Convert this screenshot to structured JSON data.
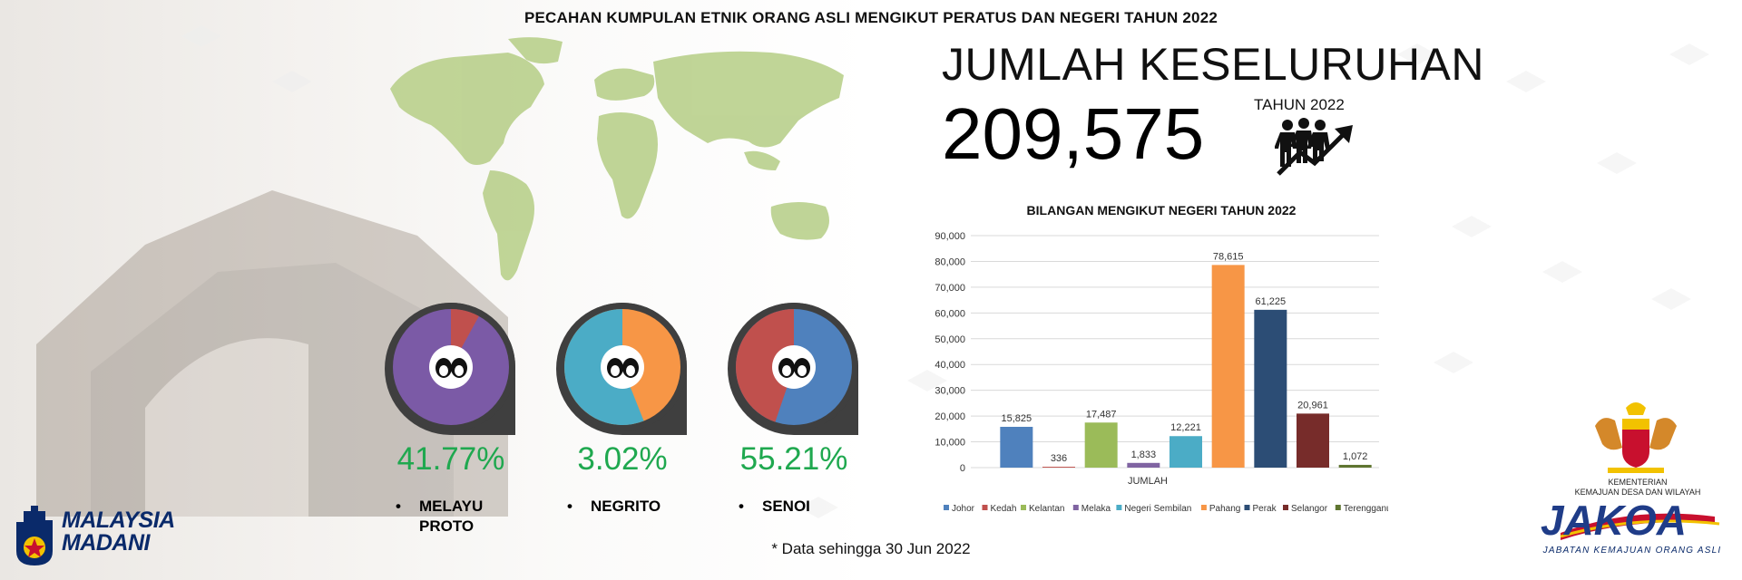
{
  "page_title": "PECAHAN KUMPULAN ETNIK ORANG ASLI MENGIKUT PERATUS DAN NEGERI TAHUN 2022",
  "total": {
    "label": "JUMLAH KESELURUHAN",
    "value": "209,575",
    "year_label": "TAHUN 2022"
  },
  "ethnic_groups": [
    {
      "pct": "41.77%",
      "fraction": 0.4177,
      "label": "MELAYU PROTO",
      "color_major": "#7b5aa6",
      "color_minor": "#c0504d"
    },
    {
      "pct": "3.02%",
      "fraction": 0.0302,
      "label": "NEGRITO",
      "color_major": "#4bacc6",
      "color_minor": "#f79646"
    },
    {
      "pct": "55.21%",
      "fraction": 0.5521,
      "label": "SENOI",
      "color_major": "#4f81bd",
      "color_minor": "#c0504d"
    }
  ],
  "bullet": "•",
  "chart_title": "BILANGAN MENGIKUT NEGERI TAHUN 2022",
  "chart_data": {
    "type": "bar",
    "title": "BILANGAN MENGIKUT NEGERI TAHUN 2022",
    "xlabel": "JUMLAH",
    "ylabel": "",
    "ylim": [
      0,
      90000
    ],
    "yticks": [
      "0",
      "10,000",
      "20,000",
      "30,000",
      "40,000",
      "50,000",
      "60,000",
      "70,000",
      "80,000",
      "90,000"
    ],
    "grid": true,
    "legend_position": "bottom",
    "series": [
      {
        "name": "Johor",
        "value": 15825,
        "label": "15,825",
        "color": "#4f81bd"
      },
      {
        "name": "Kedah",
        "value": 336,
        "label": "336",
        "color": "#c0504d"
      },
      {
        "name": "Kelantan",
        "value": 17487,
        "label": "17,487",
        "color": "#9bbb59"
      },
      {
        "name": "Melaka",
        "value": 1833,
        "label": "1,833",
        "color": "#8064a2"
      },
      {
        "name": "Negeri Sembilan",
        "value": 12221,
        "label": "12,221",
        "color": "#4bacc6"
      },
      {
        "name": "Pahang",
        "value": 78615,
        "label": "78,615",
        "color": "#f79646"
      },
      {
        "name": "Perak",
        "value": 61225,
        "label": "61,225",
        "color": "#2c4d75"
      },
      {
        "name": "Selangor",
        "value": 20961,
        "label": "20,961",
        "color": "#772c2a"
      },
      {
        "name": "Terengganu",
        "value": 1072,
        "label": "1,072",
        "color": "#5f7530"
      }
    ]
  },
  "footnote": "* Data sehingga 30 Jun 2022",
  "logos": {
    "madani_line1": "MALAYSIA",
    "madani_line2": "MADANI",
    "ministry_line1": "KEMENTERIAN",
    "ministry_line2": "KEMAJUAN DESA DAN WILAYAH",
    "jakoa": "JAKOA",
    "jakoa_sub": "JABATAN KEMAJUAN ORANG ASLI"
  },
  "icons": [
    "group-people-icon",
    "growth-arrow-icon",
    "face-pair-icon",
    "world-map",
    "malaysia-crest"
  ]
}
